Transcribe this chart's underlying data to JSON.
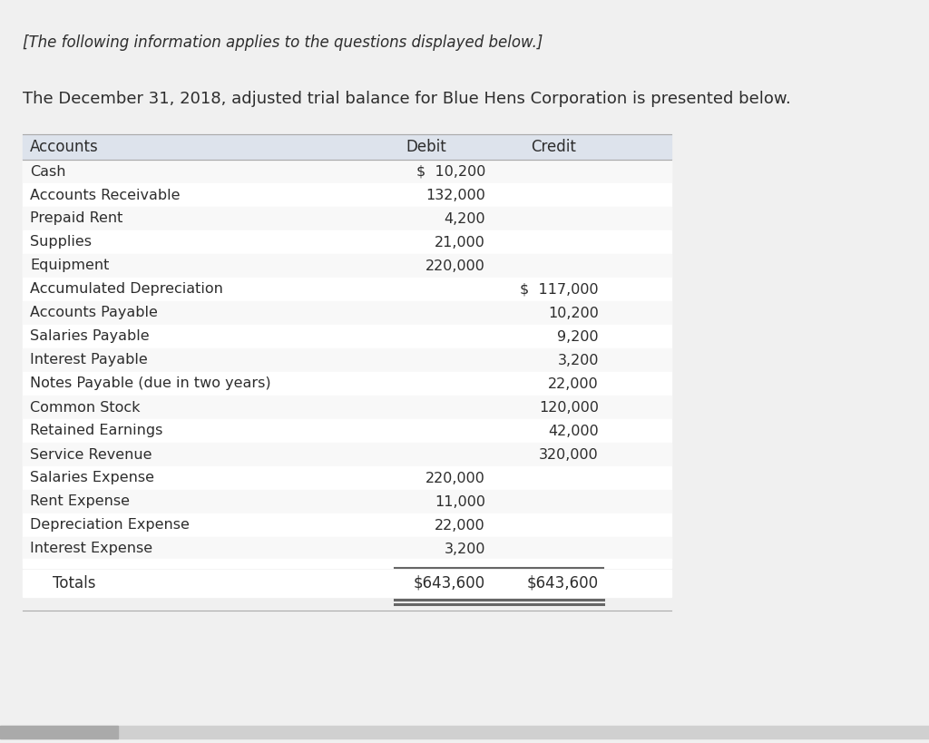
{
  "italic_header": "[The following information applies to the questions displayed below.]",
  "paragraph": "The December 31, 2018, adjusted trial balance for Blue Hens Corporation is presented below.",
  "bg_color": "#f0f0f0",
  "header_bg": "#dde3ec",
  "body_text_color": "#2d2d2d",
  "columns": [
    "Accounts",
    "Debit",
    "Credit"
  ],
  "rows": [
    {
      "account": "Cash",
      "debit": "$  10,200",
      "credit": ""
    },
    {
      "account": "Accounts Receivable",
      "debit": "132,000",
      "credit": ""
    },
    {
      "account": "Prepaid Rent",
      "debit": "4,200",
      "credit": ""
    },
    {
      "account": "Supplies",
      "debit": "21,000",
      "credit": ""
    },
    {
      "account": "Equipment",
      "debit": "220,000",
      "credit": ""
    },
    {
      "account": "Accumulated Depreciation",
      "debit": "",
      "credit": "$  117,000"
    },
    {
      "account": "Accounts Payable",
      "debit": "",
      "credit": "10,200"
    },
    {
      "account": "Salaries Payable",
      "debit": "",
      "credit": "9,200"
    },
    {
      "account": "Interest Payable",
      "debit": "",
      "credit": "3,200"
    },
    {
      "account": "Notes Payable (due in two years)",
      "debit": "",
      "credit": "22,000"
    },
    {
      "account": "Common Stock",
      "debit": "",
      "credit": "120,000"
    },
    {
      "account": "Retained Earnings",
      "debit": "",
      "credit": "42,000"
    },
    {
      "account": "Service Revenue",
      "debit": "",
      "credit": "320,000"
    },
    {
      "account": "Salaries Expense",
      "debit": "220,000",
      "credit": ""
    },
    {
      "account": "Rent Expense",
      "debit": "11,000",
      "credit": ""
    },
    {
      "account": "Depreciation Expense",
      "debit": "22,000",
      "credit": ""
    },
    {
      "account": "Interest Expense",
      "debit": "3,200",
      "credit": ""
    }
  ],
  "totals_label": "Totals",
  "totals_debit": "$643,600",
  "totals_credit": "$643,600",
  "font_size_italic": 12,
  "font_size_para": 13,
  "font_size_header": 12,
  "font_size_body": 11.5,
  "font_size_totals": 12
}
